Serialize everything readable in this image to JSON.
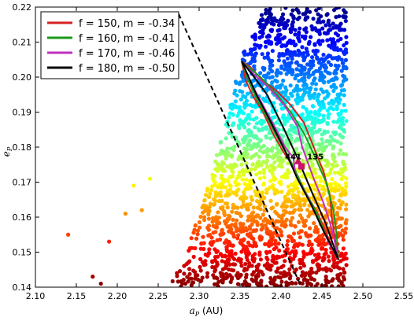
{
  "chart_data": {
    "type": "scatter",
    "xlabel": "a_P (AU)",
    "xlabel_main": "a",
    "xlabel_sub": "P",
    "xlabel_unit": " (AU)",
    "ylabel_main": "e",
    "ylabel_sub": "P",
    "xlim": [
      2.1,
      2.55
    ],
    "ylim": [
      0.14,
      0.22
    ],
    "x_ticks": [
      "2.10",
      "2.15",
      "2.20",
      "2.25",
      "2.30",
      "2.35",
      "2.40",
      "2.45",
      "2.50",
      "2.55"
    ],
    "y_ticks": [
      "0.14",
      "0.15",
      "0.16",
      "0.17",
      "0.18",
      "0.19",
      "0.20",
      "0.21",
      "0.22"
    ],
    "colormap": "jet (by e_P)",
    "legend_position": "top-left",
    "legend": [
      {
        "label": "f = 150, m = -0.34",
        "color": "#d62020"
      },
      {
        "label": "f = 160, m = -0.41",
        "color": "#1a9a1a"
      },
      {
        "label": "f = 170, m = -0.46",
        "color": "#c030c0"
      },
      {
        "label": "f = 180, m = -0.50",
        "color": "#000000"
      }
    ],
    "contours": [
      {
        "name": "f = 150, m = -0.34",
        "color": "#d62020",
        "points": [
          [
            2.352,
            0.2045
          ],
          [
            2.357,
            0.199
          ],
          [
            2.366,
            0.1945
          ],
          [
            2.378,
            0.19
          ],
          [
            2.39,
            0.184
          ],
          [
            2.402,
            0.179
          ],
          [
            2.416,
            0.174
          ],
          [
            2.43,
            0.167
          ],
          [
            2.445,
            0.161
          ],
          [
            2.458,
            0.154
          ],
          [
            2.468,
            0.148
          ],
          [
            2.47,
            0.148
          ],
          [
            2.466,
            0.154
          ],
          [
            2.462,
            0.16
          ],
          [
            2.46,
            0.166
          ],
          [
            2.452,
            0.173
          ],
          [
            2.44,
            0.18
          ],
          [
            2.428,
            0.187
          ],
          [
            2.412,
            0.192
          ],
          [
            2.395,
            0.196
          ],
          [
            2.378,
            0.199
          ],
          [
            2.362,
            0.203
          ],
          [
            2.352,
            0.2045
          ]
        ]
      },
      {
        "name": "f = 160, m = -0.41",
        "color": "#1a9a1a",
        "points": [
          [
            2.352,
            0.2045
          ],
          [
            2.36,
            0.199
          ],
          [
            2.372,
            0.193
          ],
          [
            2.386,
            0.187
          ],
          [
            2.4,
            0.181
          ],
          [
            2.414,
            0.175
          ],
          [
            2.428,
            0.168
          ],
          [
            2.444,
            0.161
          ],
          [
            2.458,
            0.153
          ],
          [
            2.47,
            0.148
          ],
          [
            2.468,
            0.155
          ],
          [
            2.464,
            0.162
          ],
          [
            2.455,
            0.17
          ],
          [
            2.442,
            0.177
          ],
          [
            2.428,
            0.184
          ],
          [
            2.412,
            0.19
          ],
          [
            2.395,
            0.195
          ],
          [
            2.375,
            0.2
          ],
          [
            2.352,
            0.2045
          ]
        ]
      },
      {
        "name": "f = 170, m = -0.46",
        "color": "#c030c0",
        "points": [
          [
            2.352,
            0.2045
          ],
          [
            2.364,
            0.198
          ],
          [
            2.378,
            0.192
          ],
          [
            2.392,
            0.186
          ],
          [
            2.405,
            0.18
          ],
          [
            2.415,
            0.177
          ],
          [
            2.418,
            0.172
          ],
          [
            2.432,
            0.166
          ],
          [
            2.446,
            0.159
          ],
          [
            2.46,
            0.152
          ],
          [
            2.47,
            0.148
          ],
          [
            2.463,
            0.156
          ],
          [
            2.452,
            0.164
          ],
          [
            2.44,
            0.171
          ],
          [
            2.426,
            0.18
          ],
          [
            2.42,
            0.186
          ],
          [
            2.404,
            0.192
          ],
          [
            2.385,
            0.197
          ],
          [
            2.366,
            0.201
          ],
          [
            2.352,
            0.2045
          ]
        ]
      },
      {
        "name": "f = 180, m = -0.50",
        "color": "#000000",
        "points": [
          [
            2.352,
            0.2045
          ],
          [
            2.37,
            0.195
          ],
          [
            2.388,
            0.187
          ],
          [
            2.405,
            0.179
          ],
          [
            2.42,
            0.171
          ],
          [
            2.436,
            0.164
          ],
          [
            2.452,
            0.156
          ],
          [
            2.47,
            0.148
          ],
          [
            2.455,
            0.158
          ],
          [
            2.438,
            0.167
          ],
          [
            2.42,
            0.177
          ],
          [
            2.402,
            0.186
          ],
          [
            2.383,
            0.195
          ],
          [
            2.364,
            0.201
          ],
          [
            2.352,
            0.2045
          ]
        ]
      }
    ],
    "dashed_line": {
      "points": [
        [
          2.275,
          0.218
        ],
        [
          2.425,
          0.14
        ]
      ],
      "style": "dashed",
      "color": "#000000"
    },
    "annotations": [
      {
        "text": "441",
        "x": 2.405,
        "y": 0.1765
      },
      {
        "text": "135",
        "x": 2.432,
        "y": 0.1765
      }
    ],
    "markers": [
      {
        "x": 2.421,
        "y": 0.176,
        "shape": "triangle",
        "color": "#d0106a"
      },
      {
        "x": 2.425,
        "y": 0.1745,
        "shape": "square",
        "color": "#d0106a"
      }
    ],
    "scatter_region": {
      "description": "dense swarm of points colored by eccentricity",
      "polygon": [
        [
          2.26,
          0.14
        ],
        [
          2.3,
          0.16
        ],
        [
          2.33,
          0.185
        ],
        [
          2.35,
          0.205
        ],
        [
          2.38,
          0.22
        ],
        [
          2.48,
          0.22
        ],
        [
          2.48,
          0.14
        ]
      ],
      "outliers": [
        [
          2.14,
          0.155
        ],
        [
          2.17,
          0.143
        ],
        [
          2.19,
          0.153
        ],
        [
          2.21,
          0.161
        ],
        [
          2.22,
          0.169
        ],
        [
          2.23,
          0.162
        ],
        [
          2.18,
          0.141
        ],
        [
          2.24,
          0.171
        ]
      ]
    }
  }
}
